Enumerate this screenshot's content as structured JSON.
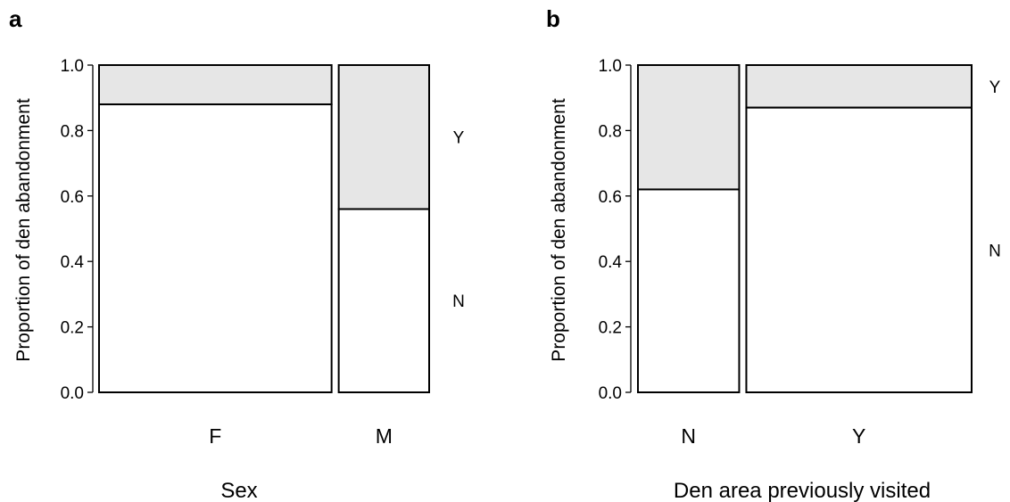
{
  "chart_data": [
    {
      "type": "mosaic",
      "panel": "a",
      "xlabel": "Sex",
      "ylabel": "Proportion of den abandonment",
      "ylim": [
        0,
        1
      ],
      "yticks": [
        "0.0",
        "0.2",
        "0.4",
        "0.6",
        "0.8",
        "1.0"
      ],
      "categories": [
        "F",
        "M"
      ],
      "category_widths": [
        0.72,
        0.28
      ],
      "response_levels": [
        "N",
        "Y"
      ],
      "proportion_N": [
        0.88,
        0.56
      ],
      "fill_colors": {
        "N": "#ffffff",
        "Y": "#e6e6e6"
      }
    },
    {
      "type": "mosaic",
      "panel": "b",
      "xlabel": "Den area previously visited",
      "ylabel": "Proportion of den abandonment",
      "ylim": [
        0,
        1
      ],
      "yticks": [
        "0.0",
        "0.2",
        "0.4",
        "0.6",
        "0.8",
        "1.0"
      ],
      "categories": [
        "N",
        "Y"
      ],
      "category_widths": [
        0.31,
        0.69
      ],
      "response_levels": [
        "N",
        "Y"
      ],
      "proportion_N": [
        0.62,
        0.87
      ],
      "fill_colors": {
        "N": "#ffffff",
        "Y": "#e6e6e6"
      }
    }
  ]
}
